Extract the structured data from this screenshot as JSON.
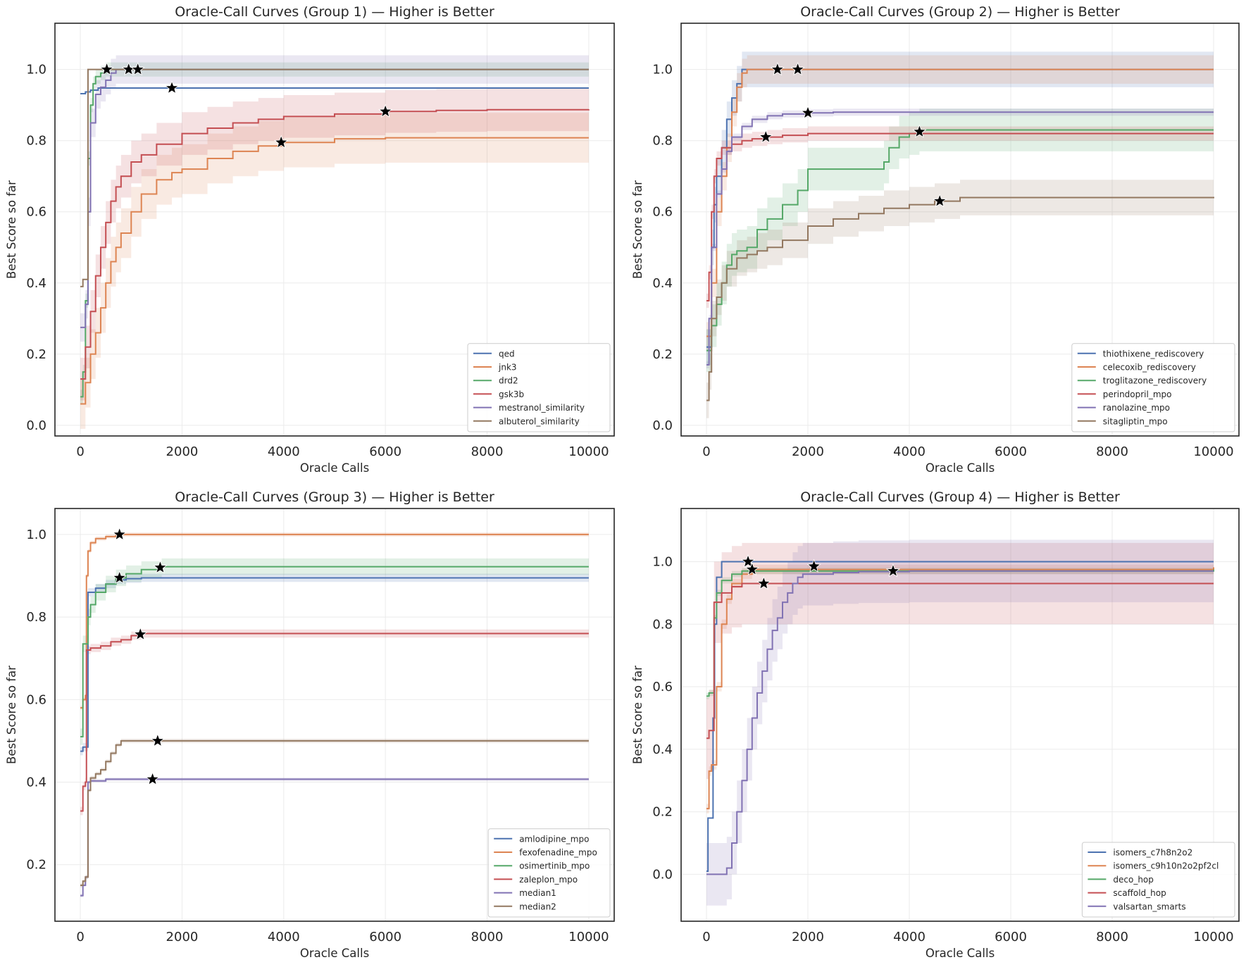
{
  "figure": {
    "colors": {
      "blue": "#4c72b0",
      "orange": "#dd8452",
      "green": "#55a868",
      "red": "#c44e52",
      "purple": "#8172b3",
      "brown": "#937860"
    }
  },
  "chart_data": [
    {
      "type": "line",
      "title": "Oracle-Call Curves (Group 1) — Higher is Better",
      "xlabel": "Oracle Calls",
      "ylabel": "Best Score so far",
      "xlim": [
        -500,
        10500
      ],
      "ylim": [
        -0.03,
        1.13
      ],
      "xticks": [
        0,
        2000,
        4000,
        6000,
        8000,
        10000
      ],
      "yticks": [
        0.0,
        0.2,
        0.4,
        0.6,
        0.8,
        1.0
      ],
      "grid": true,
      "legend_position": "lower-right",
      "series": [
        {
          "name": "qed",
          "color": "#4c72b0",
          "x": [
            0,
            100,
            200,
            350,
            10000
          ],
          "y": [
            0.932,
            0.937,
            0.942,
            0.948,
            0.948
          ],
          "band": 0.002,
          "star": [
            1800,
            0.948
          ]
        },
        {
          "name": "jnk3",
          "color": "#dd8452",
          "x": [
            0,
            100,
            200,
            300,
            400,
            500,
            600,
            700,
            800,
            1000,
            1200,
            1500,
            1800,
            2000,
            2500,
            3000,
            3500,
            4000,
            5000,
            6000,
            8000,
            10000
          ],
          "y": [
            0.06,
            0.12,
            0.2,
            0.26,
            0.33,
            0.4,
            0.46,
            0.5,
            0.54,
            0.6,
            0.65,
            0.69,
            0.71,
            0.72,
            0.75,
            0.77,
            0.785,
            0.795,
            0.805,
            0.808,
            0.808,
            0.808
          ],
          "band": 0.07,
          "star": [
            3950,
            0.795
          ]
        },
        {
          "name": "drd2",
          "color": "#55a868",
          "x": [
            0,
            50,
            100,
            150,
            200,
            250,
            300,
            400,
            500,
            600,
            10000
          ],
          "y": [
            0.08,
            0.15,
            0.35,
            0.75,
            0.9,
            0.96,
            0.98,
            0.99,
            1.0,
            1.0,
            1.0
          ],
          "band": 0.02,
          "star": [
            950,
            1.0
          ]
        },
        {
          "name": "gsk3b",
          "color": "#c44e52",
          "x": [
            0,
            100,
            200,
            300,
            400,
            500,
            600,
            700,
            800,
            1000,
            1200,
            1500,
            2000,
            2500,
            3000,
            3500,
            4000,
            5000,
            6000,
            7000,
            8000,
            10000
          ],
          "y": [
            0.13,
            0.22,
            0.32,
            0.42,
            0.5,
            0.57,
            0.63,
            0.67,
            0.7,
            0.74,
            0.76,
            0.79,
            0.82,
            0.835,
            0.85,
            0.86,
            0.868,
            0.875,
            0.882,
            0.885,
            0.887,
            0.888
          ],
          "band": 0.06,
          "star": [
            6000,
            0.882
          ]
        },
        {
          "name": "mestranol_similarity",
          "color": "#8172b3",
          "x": [
            0,
            100,
            150,
            200,
            300,
            400,
            500,
            600,
            700,
            10000
          ],
          "y": [
            0.275,
            0.34,
            0.6,
            0.85,
            0.93,
            0.95,
            0.97,
            0.99,
            1.0,
            1.0
          ],
          "band": 0.04,
          "star": [
            520,
            1.0
          ]
        },
        {
          "name": "albuterol_similarity",
          "color": "#937860",
          "x": [
            0,
            50,
            100,
            150,
            10000
          ],
          "y": [
            0.39,
            0.41,
            0.41,
            1.0,
            1.0
          ],
          "band": 0.0,
          "star": [
            1130,
            1.0
          ]
        }
      ]
    },
    {
      "type": "line",
      "title": "Oracle-Call Curves (Group 2) — Higher is Better",
      "xlabel": "Oracle Calls",
      "ylabel": "Best Score so far",
      "xlim": [
        -500,
        10500
      ],
      "ylim": [
        -0.03,
        1.13
      ],
      "xticks": [
        0,
        2000,
        4000,
        6000,
        8000,
        10000
      ],
      "yticks": [
        0.0,
        0.2,
        0.4,
        0.6,
        0.8,
        1.0
      ],
      "grid": true,
      "legend_position": "lower-right",
      "series": [
        {
          "name": "thiothixene_rediscovery",
          "color": "#4c72b0",
          "x": [
            0,
            100,
            150,
            200,
            300,
            400,
            500,
            600,
            700,
            10000
          ],
          "y": [
            0.22,
            0.5,
            0.62,
            0.7,
            0.78,
            0.86,
            0.92,
            0.96,
            1.0,
            1.0
          ],
          "band": 0.05,
          "star": [
            1400,
            1.0
          ]
        },
        {
          "name": "celecoxib_rediscovery",
          "color": "#dd8452",
          "x": [
            0,
            100,
            200,
            300,
            400,
            500,
            600,
            700,
            800,
            10000
          ],
          "y": [
            0.25,
            0.4,
            0.6,
            0.7,
            0.78,
            0.88,
            0.95,
            0.99,
            1.0,
            1.0
          ],
          "band": 0.04,
          "star": [
            1800,
            1.0
          ]
        },
        {
          "name": "troglitazone_rediscovery",
          "color": "#55a868",
          "x": [
            0,
            100,
            200,
            300,
            400,
            500,
            600,
            800,
            1000,
            1200,
            1500,
            1800,
            2000,
            2500,
            3000,
            3500,
            3600,
            3800,
            4000,
            4200,
            10000
          ],
          "y": [
            0.21,
            0.28,
            0.34,
            0.4,
            0.45,
            0.48,
            0.49,
            0.5,
            0.55,
            0.58,
            0.62,
            0.66,
            0.72,
            0.72,
            0.72,
            0.74,
            0.78,
            0.81,
            0.82,
            0.83,
            0.83
          ],
          "band": 0.06,
          "star": [
            4200,
            0.825
          ]
        },
        {
          "name": "perindopril_mpo",
          "color": "#c44e52",
          "x": [
            0,
            50,
            100,
            150,
            200,
            300,
            500,
            700,
            900,
            1200,
            1500,
            2000,
            10000
          ],
          "y": [
            0.35,
            0.43,
            0.6,
            0.7,
            0.75,
            0.78,
            0.79,
            0.8,
            0.805,
            0.81,
            0.815,
            0.82,
            0.82
          ],
          "band": 0.02,
          "star": [
            1170,
            0.81
          ]
        },
        {
          "name": "ranolazine_mpo",
          "color": "#8172b3",
          "x": [
            0,
            50,
            100,
            200,
            300,
            400,
            500,
            700,
            900,
            1200,
            1500,
            2000,
            2500,
            10000
          ],
          "y": [
            0.17,
            0.3,
            0.5,
            0.65,
            0.72,
            0.77,
            0.81,
            0.84,
            0.86,
            0.87,
            0.875,
            0.878,
            0.88,
            0.88
          ],
          "band": 0.01,
          "star": [
            2000,
            0.878
          ]
        },
        {
          "name": "sitagliptin_mpo",
          "color": "#937860",
          "x": [
            0,
            50,
            100,
            200,
            300,
            400,
            600,
            800,
            1000,
            1200,
            1500,
            2000,
            2500,
            3000,
            3500,
            4000,
            4500,
            5000,
            10000
          ],
          "y": [
            0.07,
            0.15,
            0.3,
            0.36,
            0.4,
            0.44,
            0.47,
            0.48,
            0.49,
            0.5,
            0.52,
            0.56,
            0.58,
            0.595,
            0.61,
            0.62,
            0.63,
            0.64,
            0.642
          ],
          "band": 0.05,
          "star": [
            4600,
            0.63
          ]
        }
      ]
    },
    {
      "type": "line",
      "title": "Oracle-Call Curves (Group 3) — Higher is Better",
      "xlabel": "Oracle Calls",
      "ylabel": "Best Score so far",
      "xlim": [
        -500,
        10500
      ],
      "ylim": [
        0.063,
        1.063
      ],
      "xticks": [
        0,
        2000,
        4000,
        6000,
        8000,
        10000
      ],
      "yticks": [
        0.2,
        0.4,
        0.6,
        0.8,
        1.0
      ],
      "grid": true,
      "legend_position": "lower-right",
      "series": [
        {
          "name": "amlodipine_mpo",
          "color": "#4c72b0",
          "x": [
            0,
            50,
            100,
            150,
            300,
            500,
            700,
            900,
            1200,
            10000
          ],
          "y": [
            0.475,
            0.485,
            0.485,
            0.86,
            0.87,
            0.88,
            0.89,
            0.893,
            0.895,
            0.895
          ],
          "band": 0.01,
          "star": [
            770,
            0.895
          ]
        },
        {
          "name": "fexofenadine_mpo",
          "color": "#dd8452",
          "x": [
            0,
            50,
            100,
            120,
            150,
            200,
            300,
            500,
            700,
            900,
            10000
          ],
          "y": [
            0.58,
            0.6,
            0.61,
            0.9,
            0.96,
            0.98,
            0.99,
            0.995,
            1.0,
            1.0,
            1.0
          ],
          "band": 0.005,
          "star": [
            770,
            1.0
          ]
        },
        {
          "name": "osimertinib_mpo",
          "color": "#55a868",
          "x": [
            0,
            50,
            100,
            150,
            200,
            300,
            500,
            700,
            900,
            1200,
            1600,
            10000
          ],
          "y": [
            0.51,
            0.735,
            0.735,
            0.8,
            0.83,
            0.86,
            0.88,
            0.895,
            0.905,
            0.915,
            0.922,
            0.922
          ],
          "band": 0.02,
          "star": [
            1570,
            0.92
          ]
        },
        {
          "name": "zaleplon_mpo",
          "color": "#c44e52",
          "x": [
            0,
            50,
            100,
            120,
            200,
            400,
            600,
            800,
            1000,
            1200,
            10000
          ],
          "y": [
            0.33,
            0.39,
            0.4,
            0.72,
            0.725,
            0.73,
            0.74,
            0.745,
            0.755,
            0.76,
            0.76
          ],
          "band": 0.01,
          "star": [
            1180,
            0.758
          ]
        },
        {
          "name": "median1",
          "color": "#8172b3",
          "x": [
            0,
            50,
            100,
            150,
            200,
            500,
            10000
          ],
          "y": [
            0.125,
            0.15,
            0.17,
            0.4,
            0.403,
            0.407,
            0.407
          ],
          "band": 0.004,
          "star": [
            1420,
            0.407
          ]
        },
        {
          "name": "median2",
          "color": "#937860",
          "x": [
            0,
            50,
            100,
            150,
            200,
            300,
            400,
            500,
            600,
            700,
            800,
            10000
          ],
          "y": [
            0.15,
            0.16,
            0.17,
            0.38,
            0.41,
            0.42,
            0.43,
            0.45,
            0.47,
            0.49,
            0.5,
            0.5
          ],
          "band": 0.005,
          "star": [
            1520,
            0.5
          ]
        }
      ]
    },
    {
      "type": "line",
      "title": "Oracle-Call Curves (Group 4) — Higher is Better",
      "xlabel": "Oracle Calls",
      "ylabel": "Best Score so far",
      "xlim": [
        -500,
        10500
      ],
      "ylim": [
        -0.15,
        1.17
      ],
      "xticks": [
        0,
        2000,
        4000,
        6000,
        8000,
        10000
      ],
      "yticks": [
        0.0,
        0.2,
        0.4,
        0.6,
        0.8,
        1.0
      ],
      "grid": true,
      "legend_position": "lower-right",
      "series": [
        {
          "name": "isomers_c7h8n2o2",
          "color": "#4c72b0",
          "x": [
            0,
            30,
            100,
            130,
            160,
            200,
            300,
            10000
          ],
          "y": [
            0.01,
            0.18,
            0.18,
            0.5,
            0.8,
            0.95,
            1.0,
            1.0
          ],
          "band": 0.0,
          "star": [
            820,
            1.0
          ]
        },
        {
          "name": "isomers_c9h10n2o2pf2cl",
          "color": "#dd8452",
          "x": [
            0,
            50,
            100,
            200,
            300,
            400,
            500,
            700,
            900,
            10000
          ],
          "y": [
            0.21,
            0.33,
            0.35,
            0.6,
            0.8,
            0.88,
            0.93,
            0.96,
            0.975,
            0.982
          ],
          "band": 0.015,
          "star": [
            900,
            0.975
          ]
        },
        {
          "name": "deco_hop",
          "color": "#55a868",
          "x": [
            0,
            50,
            100,
            150,
            200,
            300,
            500,
            700,
            1000,
            10000
          ],
          "y": [
            0.57,
            0.58,
            0.58,
            0.82,
            0.9,
            0.94,
            0.96,
            0.97,
            0.97,
            0.975
          ],
          "band": 0.01,
          "star": [
            2120,
            0.985
          ]
        },
        {
          "name": "scaffold_hop",
          "color": "#c44e52",
          "x": [
            0,
            50,
            100,
            150,
            200,
            300,
            500,
            700,
            1000,
            10000
          ],
          "y": [
            0.435,
            0.46,
            0.46,
            0.87,
            0.87,
            0.9,
            0.92,
            0.93,
            0.93,
            0.93
          ],
          "band": 0.13,
          "star": [
            1130,
            0.93
          ]
        },
        {
          "name": "valsartan_smarts",
          "color": "#8172b3",
          "x": [
            0,
            200,
            300,
            400,
            500,
            600,
            700,
            800,
            900,
            1000,
            1100,
            1200,
            1300,
            1400,
            1500,
            1600,
            1700,
            1800,
            1900,
            2000,
            2500,
            3000,
            4000,
            10000
          ],
          "y": [
            0.0,
            0.0,
            0.0,
            0.02,
            0.1,
            0.2,
            0.3,
            0.4,
            0.5,
            0.58,
            0.65,
            0.72,
            0.78,
            0.82,
            0.87,
            0.9,
            0.93,
            0.95,
            0.96,
            0.96,
            0.965,
            0.968,
            0.97,
            0.97
          ],
          "band": 0.1,
          "star": [
            3680,
            0.97
          ]
        }
      ]
    }
  ]
}
